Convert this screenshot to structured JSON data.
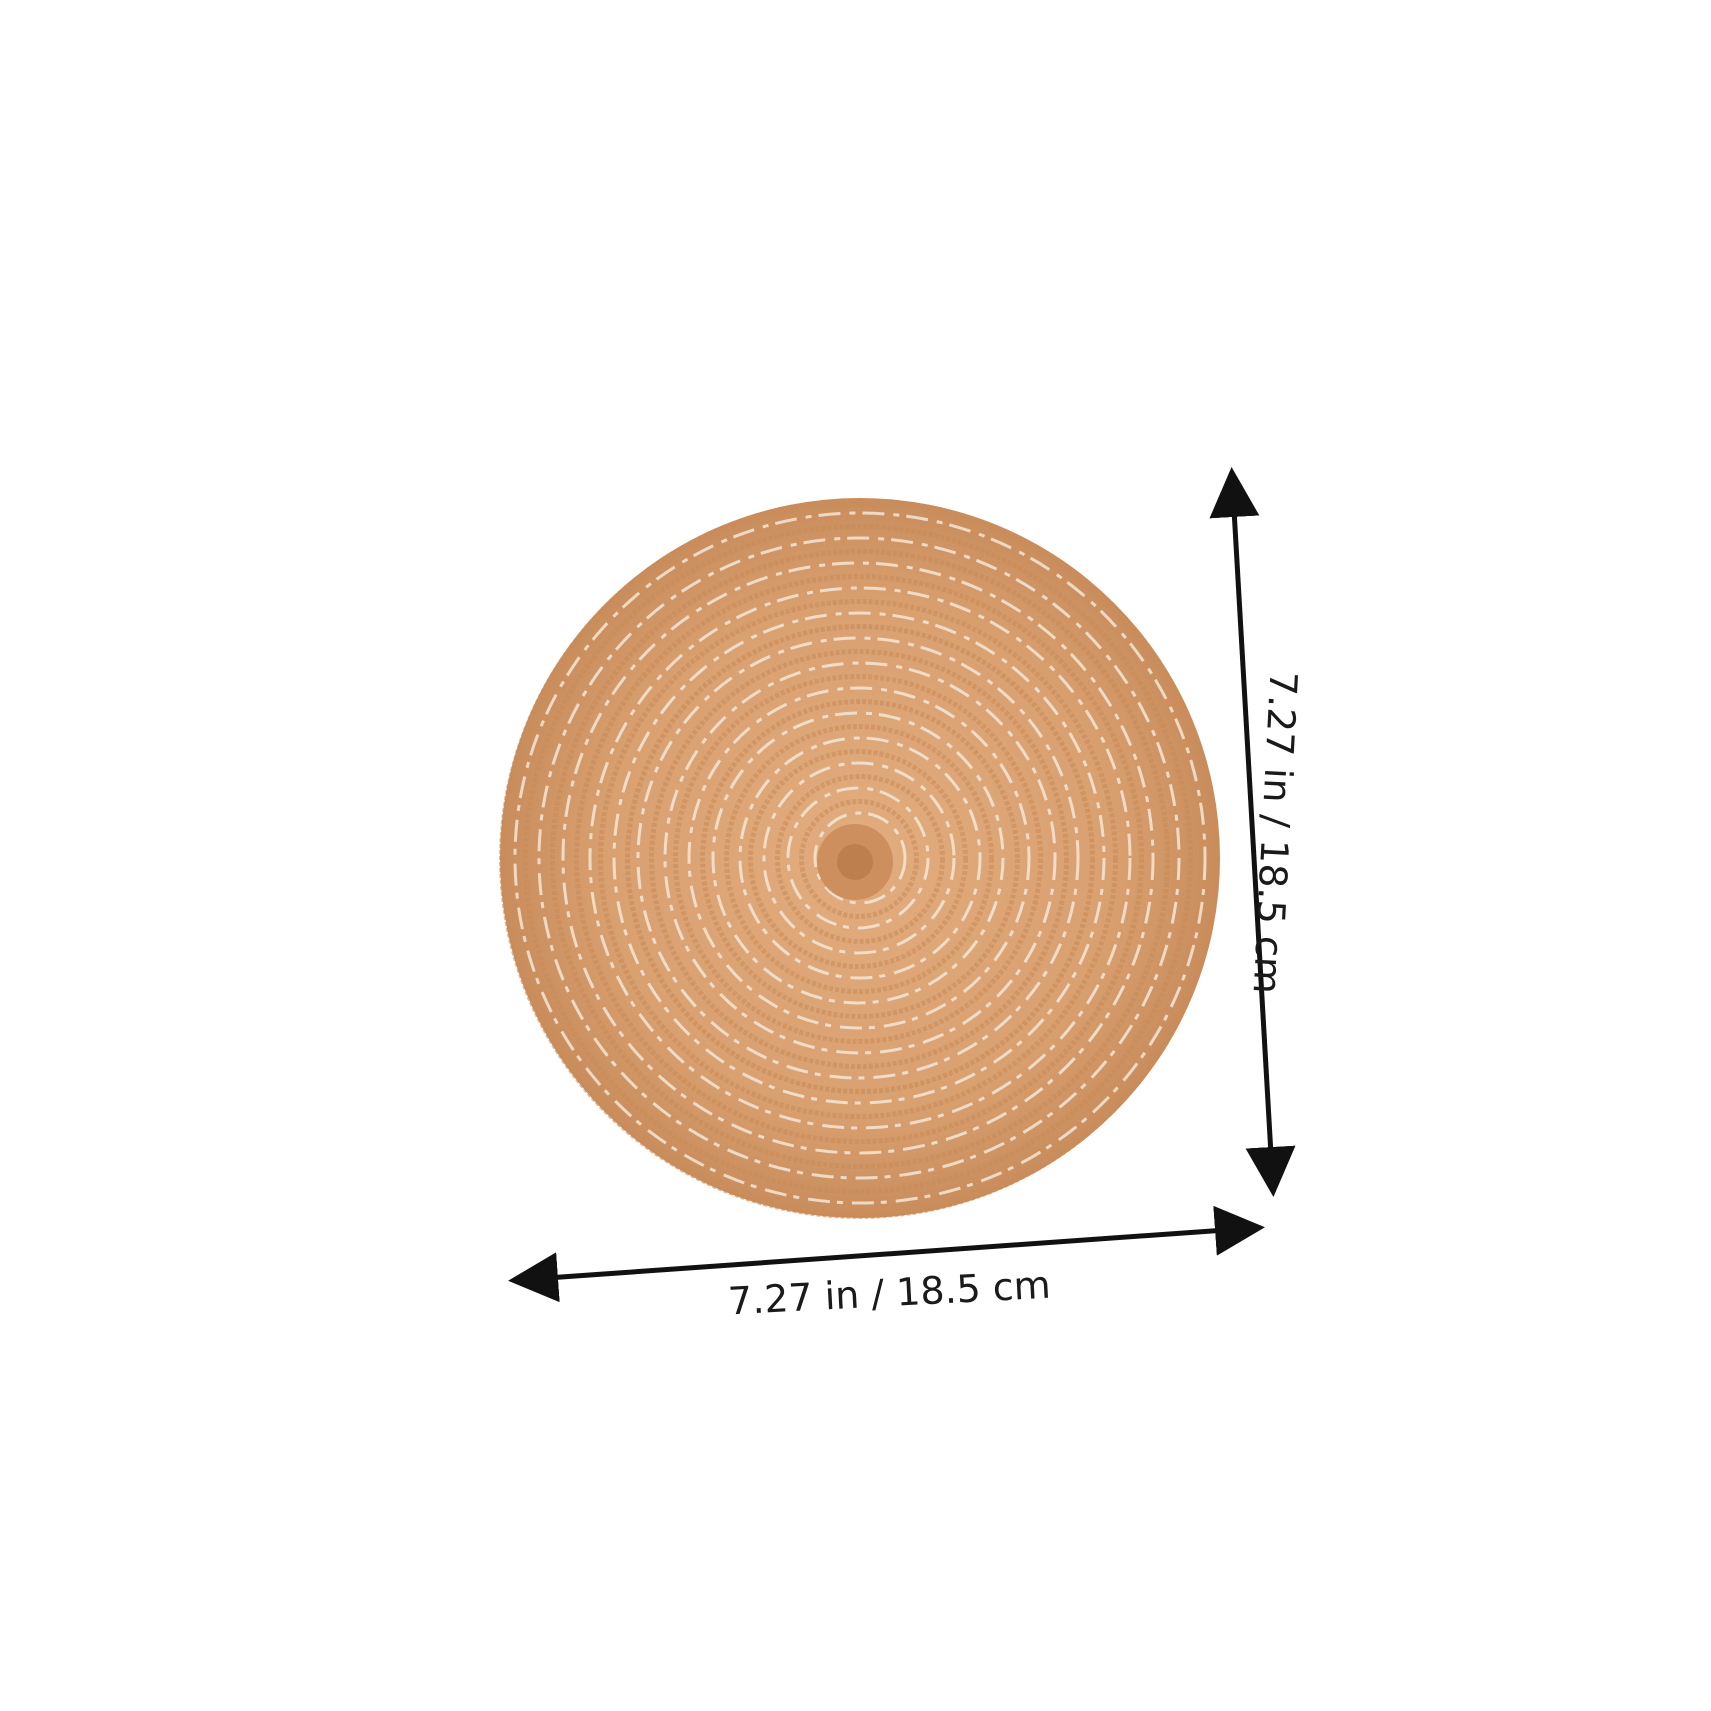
{
  "product": {
    "name": "round woven placemat",
    "colors": {
      "base": "#d9a070",
      "ring_dark": "#c98a57",
      "ring_light": "#f4e6d6",
      "highlight": "#ffffff"
    }
  },
  "dimensions": {
    "width_label": "7.27 in / 18.5 cm",
    "height_label": "7.27 in / 18.5 cm"
  },
  "colors": {
    "background": "#ffffff",
    "arrow": "#111111",
    "text": "#1a1a1a"
  }
}
